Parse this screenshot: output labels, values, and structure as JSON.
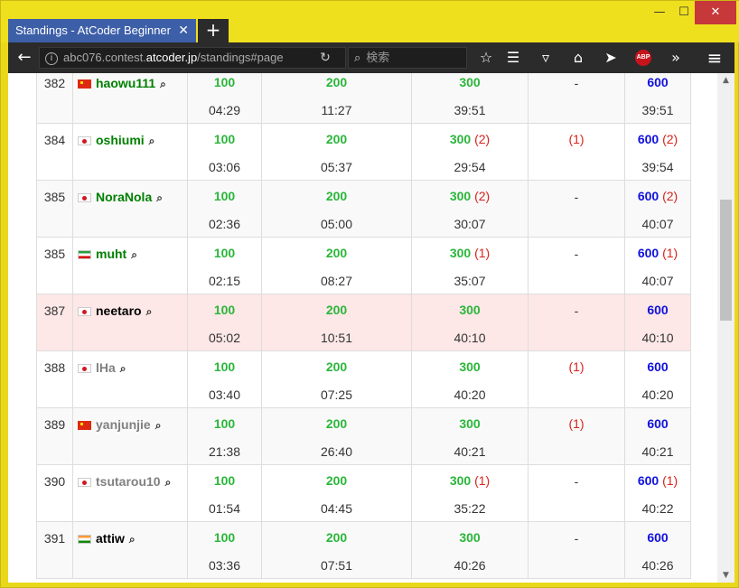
{
  "window": {
    "minimize_glyph": "—",
    "maximize_glyph": "☐",
    "close_glyph": "✕"
  },
  "tab": {
    "title": "Standings - AtCoder Beginner",
    "close_glyph": "✕",
    "new_tab_glyph": "+"
  },
  "navbar": {
    "back_glyph": "←",
    "url_prefix": "abc076.contest.",
    "url_host": "atcoder.jp",
    "url_suffix": "/standings#page",
    "reload_glyph": "↻",
    "search_glyph": "⌕",
    "search_placeholder": "検索",
    "icons": [
      "star-icon",
      "reading-list-icon",
      "pocket-icon",
      "home-icon",
      "send-icon",
      "abp-icon",
      "overflow-icon",
      "menu-icon"
    ],
    "abp_label": "ABP",
    "glyphs": {
      "star": "☆",
      "reading": "☰",
      "pocket": "▿",
      "home": "⌂",
      "send": "➤",
      "overflow": "»",
      "menu": "≡"
    }
  },
  "scrollbar": {
    "up": "▲",
    "down": "▼"
  },
  "colors": {
    "accepted": "#2ab63a",
    "total": "#1111dd",
    "penalty": "#d9231d",
    "highlight_row": "#fde7e7",
    "window_border": "#f0e21c"
  },
  "search_icon_glyph": "⌕",
  "rows": [
    {
      "rank": "382",
      "flag": "cn",
      "user": "haowu111",
      "user_color": "#008000",
      "t1": {
        "score": "100",
        "pen": "",
        "time": "04:29"
      },
      "t2": {
        "score": "200",
        "pen": "",
        "time": "11:27"
      },
      "t3": {
        "score": "300",
        "pen": "",
        "time": "39:51"
      },
      "t4": {
        "score": "-",
        "pen": "",
        "time": ""
      },
      "total": {
        "score": "600",
        "pen": "",
        "time": "39:51"
      }
    },
    {
      "rank": "384",
      "flag": "jp",
      "user": "oshiumi",
      "user_color": "#008000",
      "t1": {
        "score": "100",
        "pen": "",
        "time": "03:06"
      },
      "t2": {
        "score": "200",
        "pen": "",
        "time": "05:37"
      },
      "t3": {
        "score": "300",
        "pen": "(2)",
        "time": "29:54"
      },
      "t4": {
        "score": "",
        "pen": "(1)",
        "time": ""
      },
      "total": {
        "score": "600",
        "pen": "(2)",
        "time": "39:54"
      }
    },
    {
      "rank": "385",
      "flag": "jp",
      "user": "NoraNola",
      "user_color": "#008000",
      "t1": {
        "score": "100",
        "pen": "",
        "time": "02:36"
      },
      "t2": {
        "score": "200",
        "pen": "",
        "time": "05:00"
      },
      "t3": {
        "score": "300",
        "pen": "(2)",
        "time": "30:07"
      },
      "t4": {
        "score": "-",
        "pen": "",
        "time": ""
      },
      "total": {
        "score": "600",
        "pen": "(2)",
        "time": "40:07"
      }
    },
    {
      "rank": "385",
      "flag": "ir",
      "user": "muht",
      "user_color": "#008000",
      "t1": {
        "score": "100",
        "pen": "",
        "time": "02:15"
      },
      "t2": {
        "score": "200",
        "pen": "",
        "time": "08:27"
      },
      "t3": {
        "score": "300",
        "pen": "(1)",
        "time": "35:07"
      },
      "t4": {
        "score": "-",
        "pen": "",
        "time": ""
      },
      "total": {
        "score": "600",
        "pen": "(1)",
        "time": "40:07"
      }
    },
    {
      "rank": "387",
      "flag": "jp",
      "user": "neetaro",
      "user_color": "#000000",
      "t1": {
        "score": "100",
        "pen": "",
        "time": "05:02"
      },
      "t2": {
        "score": "200",
        "pen": "",
        "time": "10:51"
      },
      "t3": {
        "score": "300",
        "pen": "",
        "time": "40:10"
      },
      "t4": {
        "score": "-",
        "pen": "",
        "time": ""
      },
      "total": {
        "score": "600",
        "pen": "",
        "time": "40:10"
      }
    },
    {
      "rank": "388",
      "flag": "jp",
      "user": "lHa",
      "user_color": "#808080",
      "t1": {
        "score": "100",
        "pen": "",
        "time": "03:40"
      },
      "t2": {
        "score": "200",
        "pen": "",
        "time": "07:25"
      },
      "t3": {
        "score": "300",
        "pen": "",
        "time": "40:20"
      },
      "t4": {
        "score": "",
        "pen": "(1)",
        "time": ""
      },
      "total": {
        "score": "600",
        "pen": "",
        "time": "40:20"
      }
    },
    {
      "rank": "389",
      "flag": "cn",
      "user": "yanjunjie",
      "user_color": "#808080",
      "t1": {
        "score": "100",
        "pen": "",
        "time": "21:38"
      },
      "t2": {
        "score": "200",
        "pen": "",
        "time": "26:40"
      },
      "t3": {
        "score": "300",
        "pen": "",
        "time": "40:21"
      },
      "t4": {
        "score": "",
        "pen": "(1)",
        "time": ""
      },
      "total": {
        "score": "600",
        "pen": "",
        "time": "40:21"
      }
    },
    {
      "rank": "390",
      "flag": "jp",
      "user": "tsutarou10",
      "user_color": "#808080",
      "t1": {
        "score": "100",
        "pen": "",
        "time": "01:54"
      },
      "t2": {
        "score": "200",
        "pen": "",
        "time": "04:45"
      },
      "t3": {
        "score": "300",
        "pen": "(1)",
        "time": "35:22"
      },
      "t4": {
        "score": "-",
        "pen": "",
        "time": ""
      },
      "total": {
        "score": "600",
        "pen": "(1)",
        "time": "40:22"
      }
    },
    {
      "rank": "391",
      "flag": "in",
      "user": "attiw",
      "user_color": "#000000",
      "t1": {
        "score": "100",
        "pen": "",
        "time": "03:36"
      },
      "t2": {
        "score": "200",
        "pen": "",
        "time": "07:51"
      },
      "t3": {
        "score": "300",
        "pen": "",
        "time": "40:26"
      },
      "t4": {
        "score": "-",
        "pen": "",
        "time": ""
      },
      "total": {
        "score": "600",
        "pen": "",
        "time": "40:26"
      }
    }
  ],
  "highlight_rank_index": 4
}
